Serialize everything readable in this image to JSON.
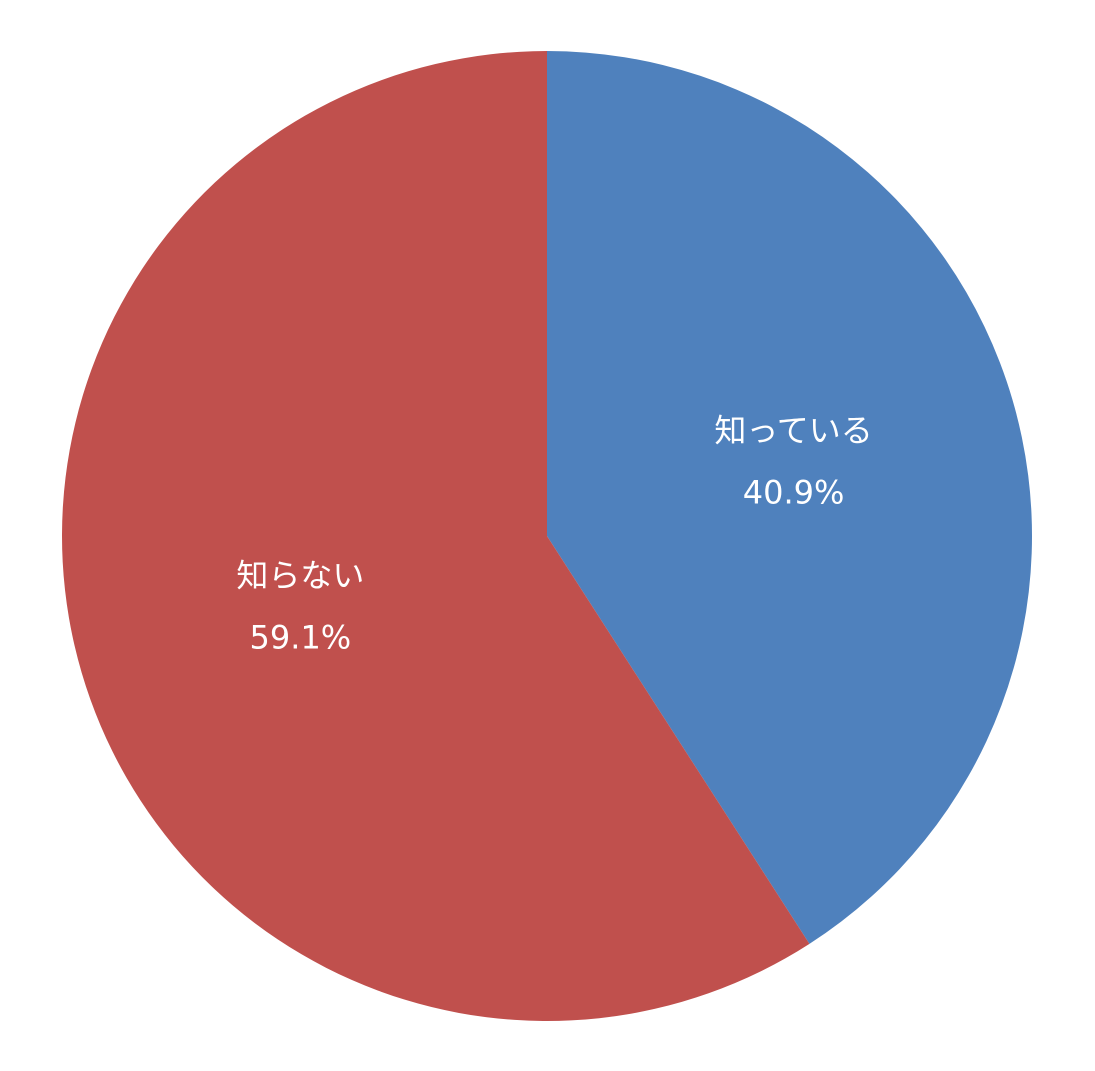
{
  "chart_data": {
    "type": "pie",
    "categories": [
      "知っている",
      "知らない"
    ],
    "values": [
      40.9,
      59.1
    ],
    "value_labels": [
      "40.9%",
      "59.1%"
    ],
    "colors": [
      "#4f81bd",
      "#c0504d"
    ]
  }
}
